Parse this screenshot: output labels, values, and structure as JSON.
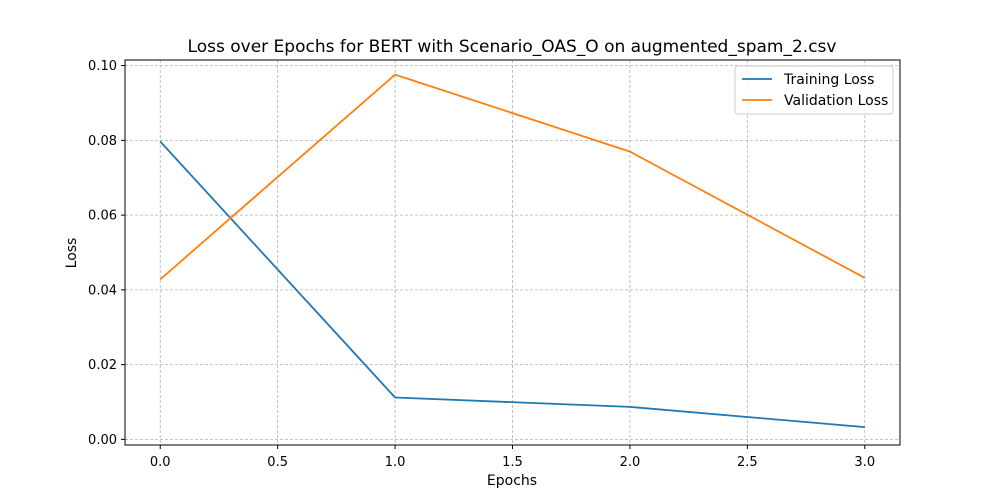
{
  "chart_data": {
    "type": "line",
    "title": "Loss over Epochs for BERT with Scenario_OAS_O on augmented_spam_2.csv",
    "xlabel": "Epochs",
    "ylabel": "Loss",
    "xlim": [
      -0.15,
      3.15
    ],
    "ylim": [
      -0.0015,
      0.1015
    ],
    "x_ticks": [
      0.0,
      0.5,
      1.0,
      1.5,
      2.0,
      2.5,
      3.0
    ],
    "x_tick_labels": [
      "0.0",
      "0.5",
      "1.0",
      "1.5",
      "2.0",
      "2.5",
      "3.0"
    ],
    "y_ticks": [
      0.0,
      0.02,
      0.04,
      0.06,
      0.08,
      0.1
    ],
    "y_tick_labels": [
      "0.00",
      "0.02",
      "0.04",
      "0.06",
      "0.08",
      "0.10"
    ],
    "grid": true,
    "legend_position": "top-right",
    "x": [
      0,
      1,
      2,
      3
    ],
    "series": [
      {
        "name": "Training Loss",
        "color": "#1f77b4",
        "values": [
          0.0797,
          0.0112,
          0.0087,
          0.0033
        ]
      },
      {
        "name": "Validation Loss",
        "color": "#ff7f0e",
        "values": [
          0.0428,
          0.0976,
          0.077,
          0.0432
        ]
      }
    ]
  }
}
